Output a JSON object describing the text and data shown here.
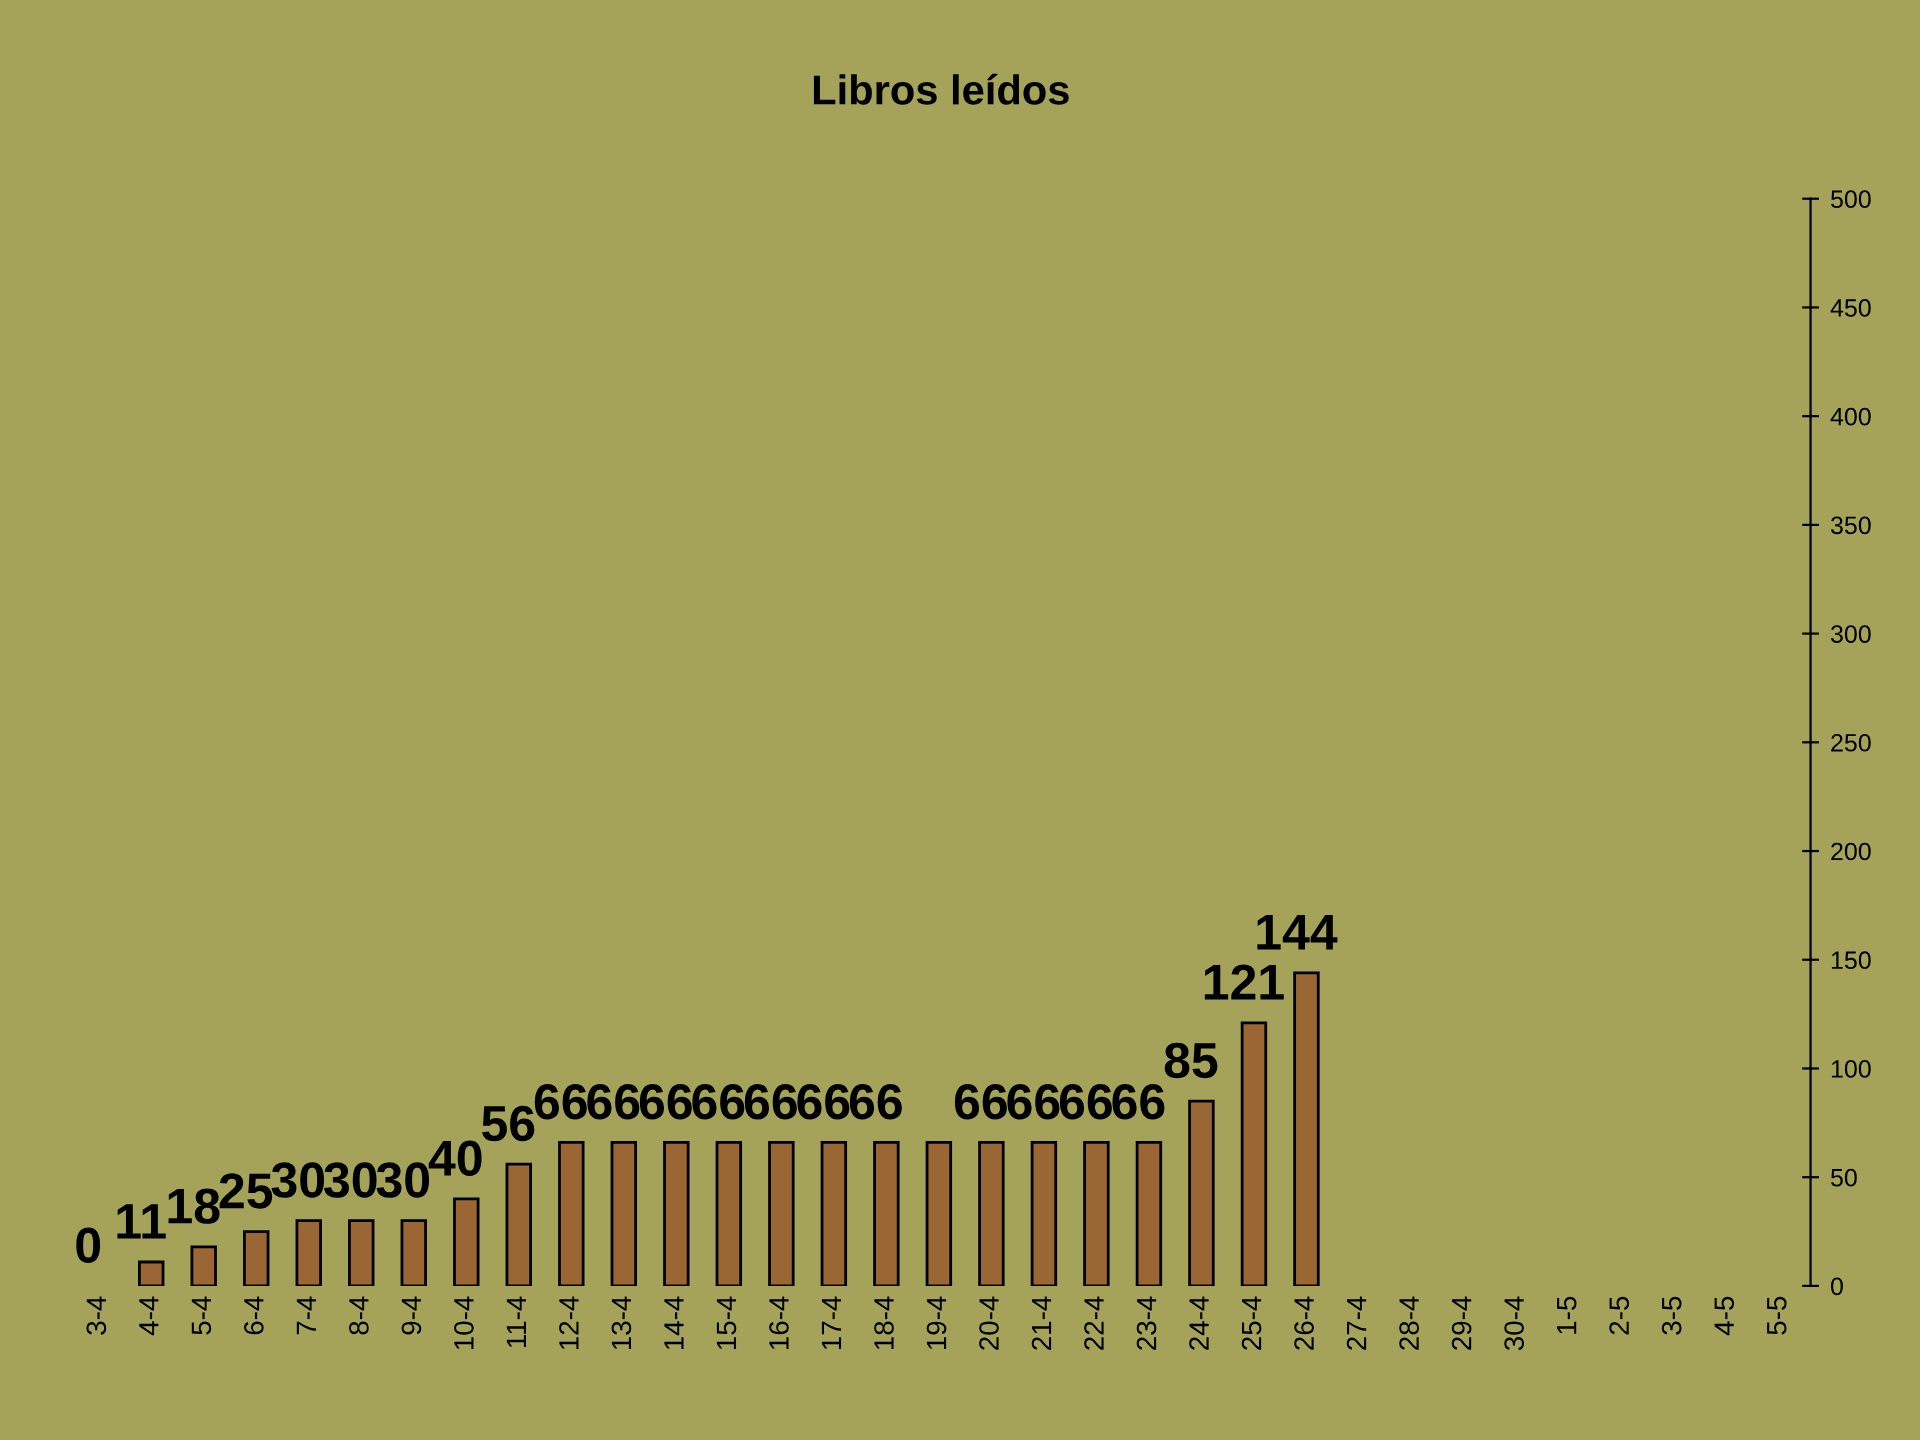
{
  "chart_data": {
    "type": "bar",
    "title": "Libros leídos",
    "categories": [
      "3-4",
      "4-4",
      "5-4",
      "6-4",
      "7-4",
      "8-4",
      "9-4",
      "10-4",
      "11-4",
      "12-4",
      "13-4",
      "14-4",
      "15-4",
      "16-4",
      "17-4",
      "18-4",
      "19-4",
      "20-4",
      "21-4",
      "22-4",
      "23-4",
      "24-4",
      "25-4",
      "26-4",
      "27-4",
      "28-4",
      "29-4",
      "30-4",
      "1-5",
      "2-5",
      "3-5",
      "4-5",
      "5-5"
    ],
    "values": [
      0,
      11,
      18,
      25,
      30,
      30,
      30,
      40,
      56,
      66,
      66,
      66,
      66,
      66,
      66,
      66,
      66,
      66,
      66,
      66,
      66,
      85,
      121,
      144,
      null,
      null,
      null,
      null,
      null,
      null,
      null,
      null,
      null
    ],
    "value_labels": [
      "0",
      "11",
      "18",
      "25",
      "30",
      "30",
      "30",
      "40",
      "56",
      "66",
      "66",
      "66",
      "66",
      "66",
      "66",
      "66",
      null,
      "66",
      "66",
      "66",
      "66",
      "85",
      "121",
      "144",
      null,
      null,
      null,
      null,
      null,
      null,
      null,
      null,
      null
    ],
    "color": "#9a6634",
    "ylim": [
      0,
      500
    ],
    "yticks": [
      0,
      50,
      100,
      150,
      200,
      250,
      300,
      350,
      400,
      450,
      500
    ],
    "grid": false,
    "legend": false
  }
}
